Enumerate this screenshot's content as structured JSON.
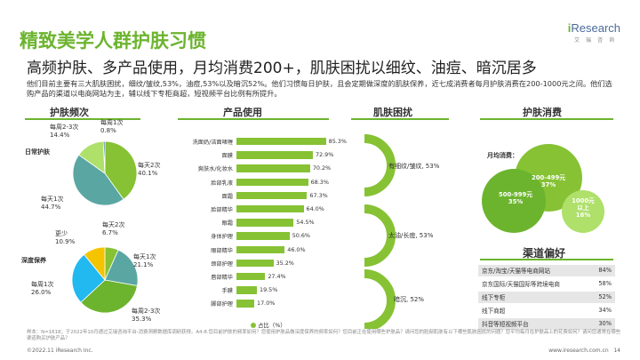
{
  "header": {
    "title": "精致美学人群护肤习惯",
    "logo_main": "Research",
    "logo_i": "i",
    "logo_sub": "艾瑞咨询",
    "subtitle": "高频护肤、多产品使用，月均消费200+，肌肤困扰以细纹、油痘、暗沉居多",
    "description": "他们目前主要有三大肌肤困扰，细纹/皱纹,53%，油痘,53%以及暗沉52%。他们习惯每日护肤，且会定期做深度的肌肤保养，近七成消费者每月护肤消费在200-1000元之间。他们选购产品的渠道以电商网站为主，辅以线下专柜商超，短视频平台比例有所提升。"
  },
  "sections": {
    "frequency": "护肤频次",
    "products": "产品使用",
    "concerns": "肌肤困扰",
    "spending": "护肤消费",
    "channels": "渠道偏好"
  },
  "frequency": {
    "daily_label": "日常护肤",
    "deep_label": "深度保养",
    "daily": [
      {
        "name": "每天2次",
        "value": "40.1%",
        "pct": 40.1,
        "color": "#86c234"
      },
      {
        "name": "每天1次",
        "value": "44.7%",
        "pct": 44.7,
        "color": "#5aa6a3"
      },
      {
        "name": "每周2-3次",
        "value": "14.4%",
        "pct": 14.4,
        "color": "#aee06a"
      },
      {
        "name": "每周1次",
        "value": "0.8%",
        "pct": 0.8,
        "color": "#2f6f9e"
      }
    ],
    "deep": [
      {
        "name": "每天2次",
        "value": "6.7%",
        "pct": 6.7,
        "color": "#86c234"
      },
      {
        "name": "每天1次",
        "value": "21.1%",
        "pct": 21.1,
        "color": "#5aa6a3"
      },
      {
        "name": "每周2-3次",
        "value": "35.3%",
        "pct": 35.3,
        "color": "#6cb42e"
      },
      {
        "name": "每周1次",
        "value": "26.0%",
        "pct": 26.0,
        "color": "#22b8f0"
      },
      {
        "name": "更少",
        "value": "10.9%",
        "pct": 10.9,
        "color": "#f5c400"
      }
    ]
  },
  "chart_data": {
    "type": "bar",
    "title": "产品使用",
    "legend": "占比（%）",
    "categories": [
      "洗面奶/洁面啫喱",
      "面膜",
      "爽肤水/化妆水",
      "脸部乳液",
      "面霜",
      "脸部精华",
      "眼霜",
      "身体护理",
      "眼部精华",
      "颈部护理",
      "唇部精华",
      "手膜",
      "脚部护理"
    ],
    "values": [
      85.3,
      72.9,
      70.2,
      68.3,
      67.3,
      64.0,
      54.5,
      50.6,
      46.0,
      35.2,
      27.4,
      19.5,
      17.0
    ],
    "labels": [
      "85.3%",
      "72.9%",
      "70.2%",
      "68.3%",
      "67.3%",
      "64.0%",
      "54.5%",
      "50.6%",
      "46.0%",
      "35.2%",
      "27.4%",
      "19.5%",
      "17.0%"
    ],
    "xlim": [
      0,
      100
    ]
  },
  "concerns": [
    {
      "label": "有细纹/皱纹, 53%",
      "pct": 53
    },
    {
      "label": "太油/长痘, 53%",
      "pct": 53
    },
    {
      "label": "暗沉, 52%",
      "pct": 52
    }
  ],
  "spending": {
    "label": "月均消费：",
    "bubbles": [
      {
        "range": "200-499元",
        "pct": "37%"
      },
      {
        "range": "500-999元",
        "pct": "35%"
      },
      {
        "range": "1000元\n以上",
        "line1": "1000元",
        "line2": "以上",
        "pct": "16%"
      }
    ]
  },
  "channels": [
    {
      "name": "京东/淘宝/天猫等电商网站",
      "value": "84%"
    },
    {
      "name": "京东国际/天猫国际等跨境电商",
      "value": "58%"
    },
    {
      "name": "线下专柜",
      "value": "52%"
    },
    {
      "name": "线下商超",
      "value": "34%"
    },
    {
      "name": "抖音等短视频平台",
      "value": "30%"
    }
  ],
  "footer": {
    "note": "样本：N=1618；于2022年10月通过艾瑞咨询平台-消费洞察数据库调研获得。A4-8.您目前护肤的频率如何？您使用护肤品做深度保养的频率如何？您目前正在使用哪些护肤品？请问您的脸部肌肤有以下哪些肌肤困扰的问题？您平均每月在护肤品上的花费如何？请问您通常在哪些渠道购买护肤产品？",
    "copyright": "©2022.11 iResearch Inc.",
    "site": "www.iresearch.com.cn",
    "page": "14"
  }
}
